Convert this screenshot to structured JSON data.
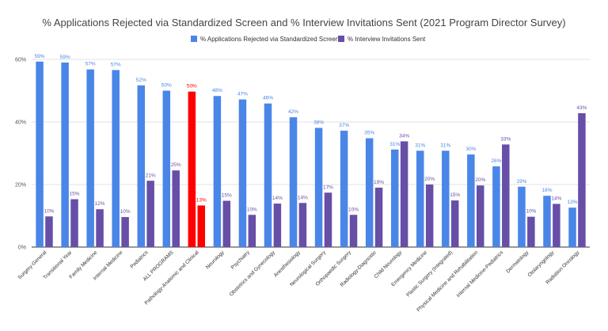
{
  "chart_data": {
    "type": "bar",
    "title": "% Applications Rejected via Standardized Screen and % Interview Invitations Sent (2021 Program Director Survey)",
    "xlabel": "",
    "ylabel": "",
    "ylim": [
      0,
      60
    ],
    "yticks": [
      "0%",
      "20%",
      "40%",
      "60%"
    ],
    "grid": true,
    "legend_position": "top",
    "categories": [
      "Surgery-General",
      "Transitional Year",
      "Family Medicine",
      "Internal Medicine",
      "Pediatrics",
      "ALL PROGRAMS",
      "Pathology-Anatomic and Clinical",
      "Neurology",
      "Psychiatry",
      "Obstetrics and Gynecology",
      "Anesthesiology",
      "Neurological Surgery",
      "Orthopaedic Surgery",
      "Radiology-Diagnostic",
      "Child Neurology",
      "Emergency Medicine",
      "Plastic Surgery (Integrated)",
      "Physical Medicine and Rehabilitation",
      "Internal Medicine-Pediatrics",
      "Dermatology",
      "Otolaryngology",
      "Radiation Oncology"
    ],
    "series": [
      {
        "name": "% Applications Rejected via Standardized Screen",
        "color": "#4a86e8",
        "values": [
          59.3,
          59.0,
          56.8,
          56.6,
          51.7,
          50.0,
          49.7,
          48.3,
          47.2,
          45.9,
          41.5,
          38.1,
          37.2,
          34.8,
          31.2,
          30.8,
          30.8,
          29.6,
          25.8,
          19.3,
          16.4,
          12.6
        ],
        "labels": [
          "59%",
          "59%",
          "57%",
          "57%",
          "52%",
          "50%",
          "50%",
          "48%",
          "47%",
          "46%",
          "42%",
          "38%",
          "37%",
          "35%",
          "31%",
          "31%",
          "31%",
          "30%",
          "26%",
          "19%",
          "16%",
          "13%"
        ]
      },
      {
        "name": "% Interview Invitations Sent",
        "color": "#674ea7",
        "values": [
          9.8,
          15.3,
          12.1,
          9.6,
          21.2,
          24.5,
          13.3,
          14.8,
          10.3,
          13.9,
          14.1,
          17.4,
          10.3,
          19.0,
          33.8,
          20.0,
          14.9,
          19.7,
          32.8,
          9.7,
          13.8,
          42.8
        ],
        "labels": [
          "10%",
          "15%",
          "12%",
          "10%",
          "21%",
          "25%",
          "13%",
          "15%",
          "10%",
          "14%",
          "14%",
          "17%",
          "10%",
          "19%",
          "34%",
          "20%",
          "15%",
          "20%",
          "33%",
          "10%",
          "14%",
          "43%"
        ]
      }
    ],
    "highlight": {
      "category_index": 6,
      "color": "#ff0000"
    }
  }
}
